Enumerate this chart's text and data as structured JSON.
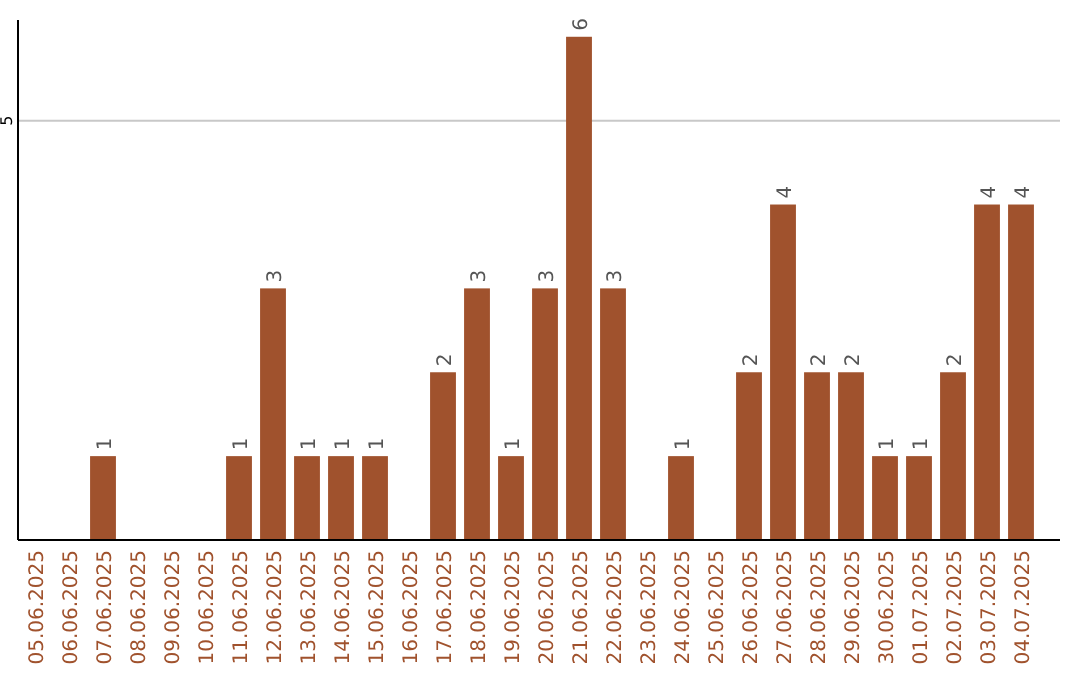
{
  "chart_data": {
    "type": "bar",
    "categories": [
      "05.06.2025",
      "06.06.2025",
      "07.06.2025",
      "08.06.2025",
      "09.06.2025",
      "10.06.2025",
      "11.06.2025",
      "12.06.2025",
      "13.06.2025",
      "14.06.2025",
      "15.06.2025",
      "16.06.2025",
      "17.06.2025",
      "18.06.2025",
      "19.06.2025",
      "20.06.2025",
      "21.06.2025",
      "22.06.2025",
      "23.06.2025",
      "24.06.2025",
      "25.06.2025",
      "26.06.2025",
      "27.06.2025",
      "28.06.2025",
      "29.06.2025",
      "30.06.2025",
      "01.07.2025",
      "02.07.2025",
      "03.07.2025",
      "04.07.2025"
    ],
    "values": [
      0,
      0,
      1,
      0,
      0,
      0,
      1,
      3,
      1,
      1,
      1,
      0,
      2,
      3,
      1,
      3,
      6,
      3,
      0,
      1,
      0,
      2,
      4,
      2,
      2,
      1,
      1,
      2,
      4,
      4
    ],
    "value_labels": [
      null,
      null,
      "1",
      null,
      null,
      null,
      "1",
      "3",
      "1",
      "1",
      "1",
      null,
      "2",
      "3",
      "1",
      "3",
      "6",
      "3",
      null,
      "1",
      null,
      "2",
      "4",
      "2",
      "2",
      "1",
      "1",
      "2",
      "4",
      "4"
    ],
    "color": "#a0522d",
    "ylim": [
      0,
      6.2
    ],
    "yticks": [
      5
    ],
    "grid": "y"
  }
}
